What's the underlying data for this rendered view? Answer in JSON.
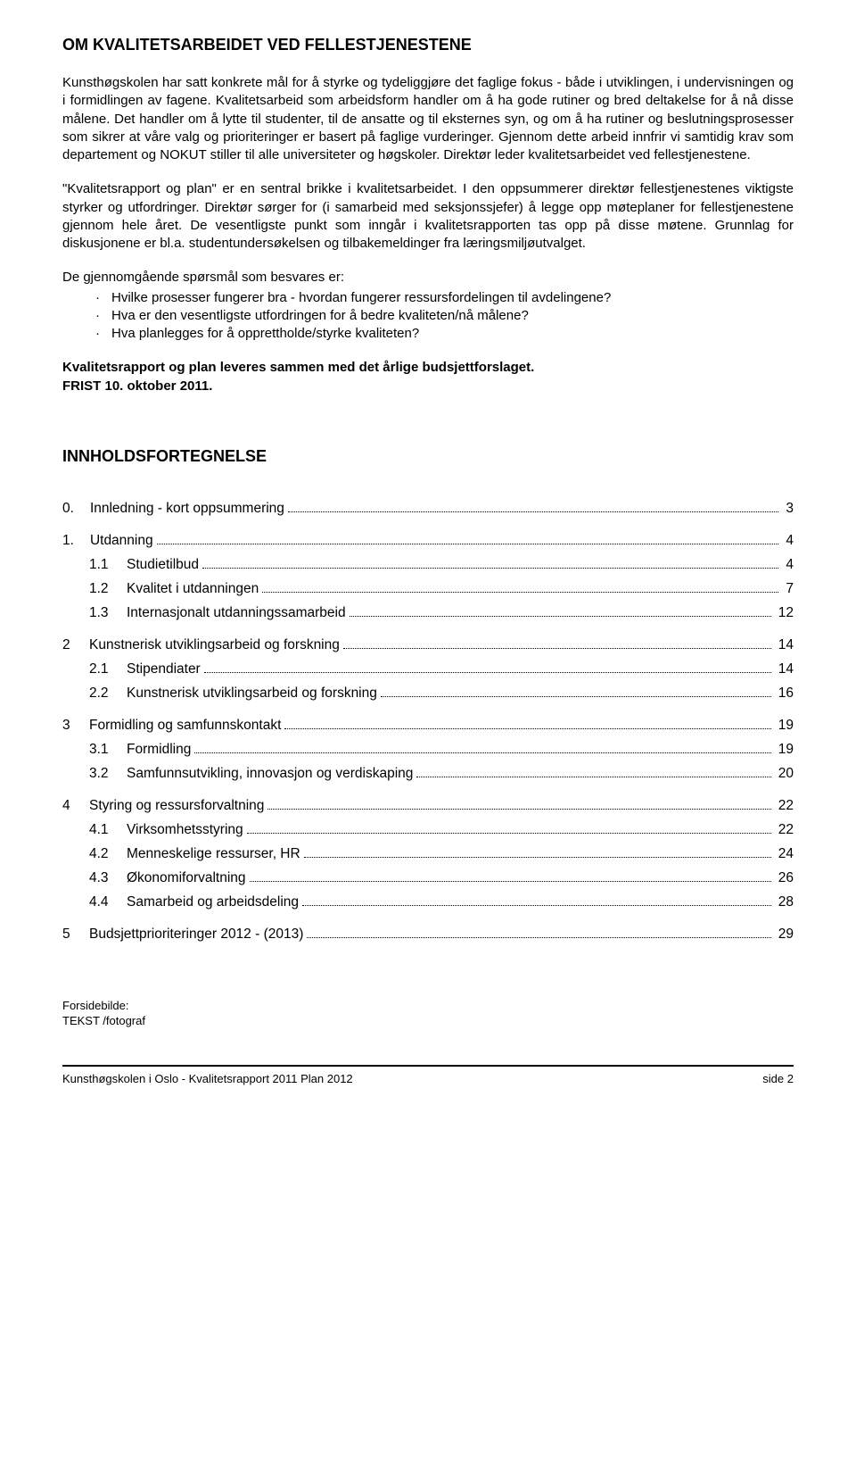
{
  "heading_main": "OM KVALITETSARBEIDET VED FELLESTJENESTENE",
  "para1": "Kunsthøgskolen har satt konkrete mål for å styrke og tydeliggjøre det faglige fokus - både i utviklingen, i undervisningen og i formidlingen av fagene. Kvalitetsarbeid som arbeidsform handler om å ha gode rutiner og bred deltakelse for å nå disse målene. Det handler om å lytte til studenter, til de ansatte og til eksternes syn, og om å ha rutiner og beslutningsprosesser som sikrer at våre valg og prioriteringer er basert på faglige vurderinger. Gjennom dette arbeid innfrir vi samtidig krav som departement og NOKUT stiller til alle universiteter og høgskoler. Direktør leder kvalitetsarbeidet ved fellestjenestene.",
  "para2": "\"Kvalitetsrapport og plan\" er en sentral brikke i kvalitetsarbeidet. I den oppsummerer direktør fellestjenestenes viktigste styrker og utfordringer. Direktør sørger for (i samarbeid med seksjonssjefer) å legge opp møteplaner for fellestjenestene gjennom hele året. De vesentligste punkt som inngår i kvalitetsrapporten tas opp på disse møtene. Grunnlag for diskusjonene er bl.a. studentundersøkelsen og tilbakemeldinger fra læringsmiljøutvalget.",
  "questions_intro": "De gjennomgående spørsmål som besvares er:",
  "q1": "Hvilke prosesser fungerer bra - hvordan fungerer ressursfordelingen til avdelingene?",
  "q2": "Hva er den vesentligste utfordringen for å bedre kvaliteten/nå målene?",
  "q3": "Hva planlegges for å opprettholde/styrke kvaliteten?",
  "deadline1": "Kvalitetsrapport og plan leveres sammen med det årlige budsjettforslaget.",
  "deadline2": "FRIST 10. oktober 2011.",
  "toc_heading": "INNHOLDSFORTEGNELSE",
  "toc": [
    {
      "num": "0.",
      "label": "Innledning - kort oppsummering",
      "page": "3",
      "level": 0,
      "spaced": false
    },
    {
      "num": "1.",
      "label": "Utdanning",
      "page": "4",
      "level": 0,
      "spaced": true
    },
    {
      "num": "1.1",
      "label": "Studietilbud",
      "page": "4",
      "level": 1,
      "spaced": false
    },
    {
      "num": "1.2",
      "label": "Kvalitet i utdanningen",
      "page": "7",
      "level": 1,
      "spaced": false
    },
    {
      "num": "1.3",
      "label": "Internasjonalt utdanningssamarbeid",
      "page": "12",
      "level": 1,
      "spaced": false
    },
    {
      "num": "2",
      "label": "Kunstnerisk utviklingsarbeid og forskning",
      "page": "14",
      "level": 0,
      "spaced": true
    },
    {
      "num": "2.1",
      "label": "Stipendiater",
      "page": "14",
      "level": 1,
      "spaced": false
    },
    {
      "num": "2.2",
      "label": "Kunstnerisk utviklingsarbeid og forskning",
      "page": "16",
      "level": 1,
      "spaced": false
    },
    {
      "num": "3",
      "label": "Formidling og samfunnskontakt",
      "page": "19",
      "level": 0,
      "spaced": true
    },
    {
      "num": "3.1",
      "label": "Formidling",
      "page": "19",
      "level": 1,
      "spaced": false
    },
    {
      "num": "3.2",
      "label": "Samfunnsutvikling, innovasjon og verdiskaping",
      "page": "20",
      "level": 1,
      "spaced": false
    },
    {
      "num": "4",
      "label": "Styring og ressursforvaltning",
      "page": "22",
      "level": 0,
      "spaced": true
    },
    {
      "num": "4.1",
      "label": "Virksomhetsstyring",
      "page": "22",
      "level": 1,
      "spaced": false
    },
    {
      "num": "4.2",
      "label": "Menneskelige ressurser, HR",
      "page": "24",
      "level": 1,
      "spaced": false
    },
    {
      "num": "4.3",
      "label": "Økonomiforvaltning",
      "page": "26",
      "level": 1,
      "spaced": false
    },
    {
      "num": "4.4",
      "label": "Samarbeid og arbeidsdeling",
      "page": "28",
      "level": 1,
      "spaced": false
    },
    {
      "num": "5",
      "label": "Budsjettprioriteringer 2012 - (2013)",
      "page": "29",
      "level": 0,
      "spaced": true
    }
  ],
  "caption1": "Forsidebilde:",
  "caption2": "TEKST /fotograf",
  "footer_left": "Kunsthøgskolen i Oslo -  Kvalitetsrapport 2011 Plan 2012",
  "footer_right": "side 2"
}
